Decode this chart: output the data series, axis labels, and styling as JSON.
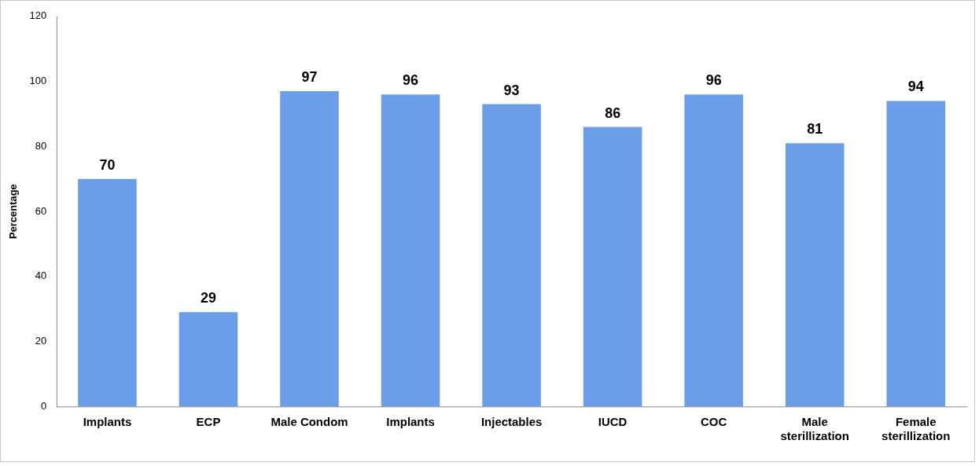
{
  "chart_data": {
    "type": "bar",
    "ylabel": "Percentage",
    "categories": [
      "Implants",
      "ECP",
      "Male Condom",
      "Implants",
      "Injectables",
      "IUCD",
      "COC",
      "Male sterillization",
      "Female sterillization"
    ],
    "values": [
      70,
      29,
      97,
      96,
      93,
      86,
      96,
      81,
      94
    ],
    "color": "#6b9ee8",
    "ylim": [
      0,
      120
    ],
    "yticks": [
      0,
      20,
      40,
      60,
      80,
      100,
      120
    ],
    "grid": false,
    "legend": false,
    "data_labels": true
  }
}
